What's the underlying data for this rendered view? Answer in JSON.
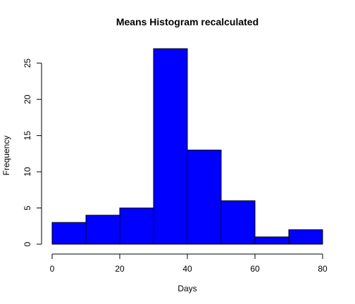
{
  "chart_data": {
    "type": "bar",
    "title": "Means Histogram recalculated",
    "xlabel": "Days",
    "ylabel": "Frequency",
    "bins": [
      {
        "from": 0,
        "to": 10,
        "count": 3
      },
      {
        "from": 10,
        "to": 20,
        "count": 4
      },
      {
        "from": 20,
        "to": 30,
        "count": 5
      },
      {
        "from": 30,
        "to": 40,
        "count": 27
      },
      {
        "from": 40,
        "to": 50,
        "count": 13
      },
      {
        "from": 50,
        "to": 60,
        "count": 6
      },
      {
        "from": 60,
        "to": 70,
        "count": 1
      },
      {
        "from": 70,
        "to": 80,
        "count": 2
      }
    ],
    "xlim": [
      0,
      80
    ],
    "ylim": [
      0,
      27
    ],
    "x_ticks": [
      0,
      20,
      40,
      60,
      80
    ],
    "y_ticks": [
      0,
      5,
      10,
      15,
      20,
      25
    ],
    "grid": false,
    "bar_color": "#0000ff",
    "bar_border_color": "#000000"
  }
}
